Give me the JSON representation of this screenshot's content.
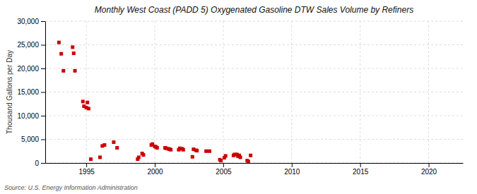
{
  "chart_data": {
    "type": "scatter",
    "title": "Monthly West Coast (PADD 5) Oxygenated Gasoline DTW Sales Volume by Refiners",
    "ylabel": "Thousand Gallons per Day",
    "source": "Source: U.S. Energy Information Administration",
    "color": "#cc0000",
    "marker": "square",
    "grid": true,
    "xlim": [
      1992.0,
      2022.5
    ],
    "ylim": [
      0,
      30000
    ],
    "xticks": [
      1995,
      2000,
      2005,
      2010,
      2015,
      2020
    ],
    "yticks": [
      0,
      {
        "value": 5000,
        "label": "5,000"
      },
      {
        "value": 10000,
        "label": "10,000"
      },
      {
        "value": 15000,
        "label": "15,000"
      },
      {
        "value": 20000,
        "label": "20,000"
      },
      {
        "value": 25000,
        "label": "25,000"
      },
      {
        "value": 30000,
        "label": "30,000"
      }
    ],
    "x": [
      1993.0,
      1993.17,
      1993.33,
      1994.0,
      1994.08,
      1994.17,
      1994.75,
      1994.83,
      1995.0,
      1995.08,
      1995.17,
      1995.33,
      1996.0,
      1996.17,
      1996.33,
      1997.0,
      1997.25,
      1998.75,
      1998.83,
      1999.08,
      1999.17,
      1999.75,
      1999.83,
      2000.0,
      2000.08,
      2000.17,
      2000.75,
      2000.83,
      2001.0,
      2001.08,
      2001.17,
      2001.75,
      2001.83,
      2002.0,
      2002.08,
      2002.75,
      2002.83,
      2003.0,
      2003.08,
      2003.75,
      2004.0,
      2004.75,
      2004.83,
      2005.08,
      2005.17,
      2005.75,
      2005.83,
      2006.0,
      2006.08,
      2006.17,
      2006.25,
      2006.75,
      2006.83,
      2007.0
    ],
    "values": [
      25500,
      23100,
      19500,
      24500,
      23200,
      19500,
      13000,
      12000,
      11700,
      12800,
      11500,
      800,
      1200,
      3600,
      3800,
      4400,
      3200,
      800,
      1200,
      2000,
      1700,
      3800,
      4000,
      3500,
      3400,
      3200,
      3200,
      3100,
      3000,
      2900,
      2800,
      2800,
      3100,
      3000,
      2800,
      1300,
      2900,
      2700,
      2600,
      2500,
      2500,
      700,
      500,
      1100,
      1500,
      1600,
      1800,
      1800,
      1400,
      1600,
      1200,
      500,
      300,
      1600
    ]
  }
}
